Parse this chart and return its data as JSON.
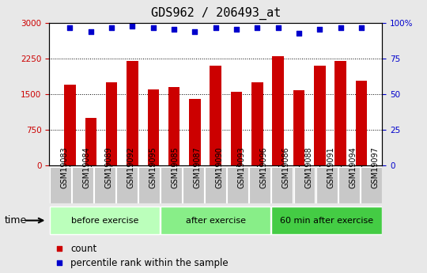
{
  "title": "GDS962 / 206493_at",
  "categories": [
    "GSM19083",
    "GSM19084",
    "GSM19089",
    "GSM19092",
    "GSM19095",
    "GSM19085",
    "GSM19087",
    "GSM19090",
    "GSM19093",
    "GSM19096",
    "GSM19086",
    "GSM19088",
    "GSM19091",
    "GSM19094",
    "GSM19097"
  ],
  "bar_values": [
    1700,
    1000,
    1750,
    2200,
    1600,
    1650,
    1400,
    2100,
    1550,
    1750,
    2300,
    1580,
    2100,
    2200,
    1780
  ],
  "percentile_values": [
    97,
    94,
    97,
    98,
    97,
    96,
    94,
    97,
    96,
    97,
    97,
    93,
    96,
    97,
    97
  ],
  "bar_color": "#cc0000",
  "percentile_color": "#0000cc",
  "ylim_left": [
    0,
    3000
  ],
  "ylim_right": [
    0,
    100
  ],
  "yticks_left": [
    0,
    750,
    1500,
    2250,
    3000
  ],
  "yticks_right": [
    0,
    25,
    50,
    75,
    100
  ],
  "ytick_labels_right": [
    "0",
    "25",
    "50",
    "75",
    "100%"
  ],
  "groups": [
    {
      "label": "before exercise",
      "start": 0,
      "end": 5,
      "color": "#bbffbb"
    },
    {
      "label": "after exercise",
      "start": 5,
      "end": 10,
      "color": "#88ee88"
    },
    {
      "label": "60 min after exercise",
      "start": 10,
      "end": 15,
      "color": "#44cc44"
    }
  ],
  "time_label": "time",
  "legend_count_label": "count",
  "legend_percentile_label": "percentile rank within the sample",
  "title_fontsize": 11,
  "tick_fontsize": 7.5,
  "background_color": "#e8e8e8",
  "plot_bg_color": "#ffffff",
  "tickbox_color": "#c8c8c8",
  "group_border_color": "#ffffff"
}
